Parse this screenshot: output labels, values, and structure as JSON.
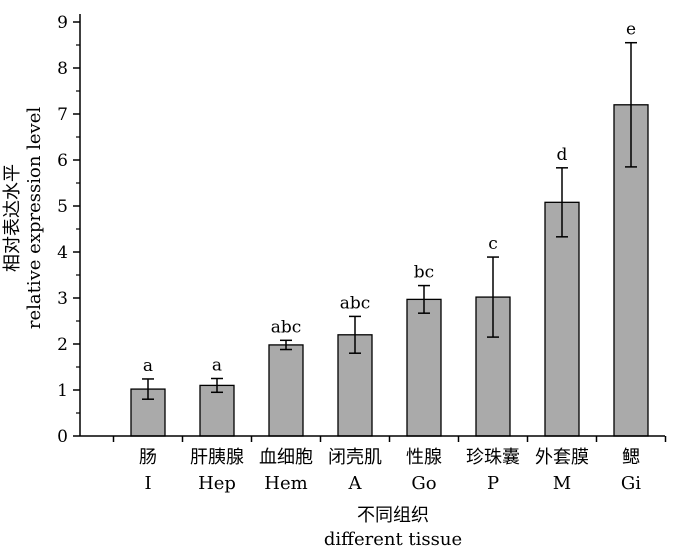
{
  "chart_data": {
    "type": "bar",
    "title": "",
    "xlabel_lines": [
      "不同组织",
      "different tissue"
    ],
    "ylabel_lines": [
      "相对表达水平",
      "relative expression level"
    ],
    "ylim": [
      0,
      9
    ],
    "yticks": [
      0,
      1,
      2,
      3,
      4,
      5,
      6,
      7,
      8,
      9
    ],
    "categories": [
      {
        "cn": "肠",
        "en": "I"
      },
      {
        "cn": "肝胰腺",
        "en": "Hep"
      },
      {
        "cn": "血细胞",
        "en": "Hem"
      },
      {
        "cn": "闭壳肌",
        "en": "A"
      },
      {
        "cn": "性腺",
        "en": "Go"
      },
      {
        "cn": "珍珠囊",
        "en": "P"
      },
      {
        "cn": "外套膜",
        "en": "M"
      },
      {
        "cn": "鳃",
        "en": "Gi"
      }
    ],
    "values": [
      1.02,
      1.1,
      1.98,
      2.2,
      2.97,
      3.02,
      5.08,
      7.2
    ],
    "error": [
      0.22,
      0.15,
      0.1,
      0.4,
      0.3,
      0.87,
      0.75,
      1.35
    ],
    "significance": [
      "a",
      "a",
      "abc",
      "abc",
      "bc",
      "c",
      "d",
      "e"
    ],
    "grid": false,
    "legend": "none",
    "colors": {
      "bar": "#aaaaaa",
      "bar_edge": "#000000",
      "axis": "#000000",
      "error_bar": "#000000"
    }
  }
}
